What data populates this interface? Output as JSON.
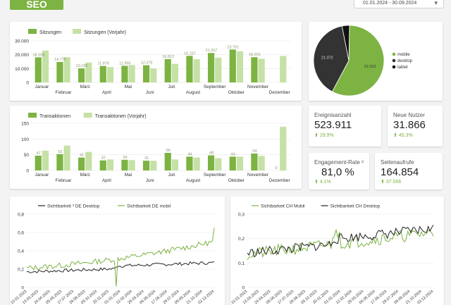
{
  "header": {
    "badge": "SEO",
    "date_range": "01.01.2024 - 30.09.2024",
    "chevron_icon": "chevron-down-icon"
  },
  "colors": {
    "current": "#7cb342",
    "previous": "#c5e1a5",
    "desktop": "#333333",
    "tablet": "#111111",
    "accent": "#7cb342"
  },
  "sessions_chart": {
    "chart_data": {
      "type": "bar",
      "categories": [
        "Januar",
        "Februar",
        "März",
        "April",
        "Mai",
        "Juni",
        "Juli",
        "August",
        "September",
        "Oktober",
        "November",
        "Dezember"
      ],
      "series": [
        {
          "name": "Sitzungen",
          "values": [
            18104,
            14776,
            10155,
            11878,
            11995,
            12376,
            16812,
            19157,
            21257,
            23761,
            18201,
            0
          ]
        },
        {
          "name": "Sitzungen (Vorjahr)",
          "values": [
            23010,
            18244,
            14312,
            11096,
            12554,
            10040,
            13420,
            16712,
            17882,
            22451,
            17050,
            19107
          ]
        }
      ],
      "data_labels": [
        "18.104",
        "14.776",
        "10.155",
        "11.878",
        "11.995",
        "12.376",
        "16.812",
        "19.157",
        "21.257",
        "23.761",
        "18.201",
        ""
      ],
      "yticks": [
        "0",
        "10.000",
        "20.000",
        "30.000"
      ],
      "ylim": [
        0,
        30000
      ]
    }
  },
  "transactions_chart": {
    "chart_data": {
      "type": "bar",
      "categories": [
        "Januar",
        "Februar",
        "März",
        "April",
        "Mai",
        "Juni",
        "Juli",
        "August",
        "September",
        "Oktober",
        "November",
        "Dezember"
      ],
      "series": [
        {
          "name": "Transaktionen",
          "values": [
            47,
            52,
            41,
            32,
            34,
            31,
            56,
            44,
            48,
            44,
            54,
            0
          ]
        },
        {
          "name": "Transaktionen (Vorjahr)",
          "values": [
            63,
            79,
            59,
            35,
            33,
            31,
            35,
            41,
            39,
            44,
            46,
            139
          ]
        }
      ],
      "data_labels": [
        "47",
        "52",
        "41",
        "32",
        "34",
        "31",
        "56",
        "44",
        "48",
        "44",
        "54",
        "0"
      ],
      "yticks": [
        "0",
        "50",
        "100",
        "150"
      ],
      "ylim": [
        0,
        150
      ]
    }
  },
  "device_pie": {
    "chart_data": {
      "type": "pie",
      "slices": [
        {
          "name": "mobile",
          "value": 31010,
          "label": "31.010"
        },
        {
          "name": "desktop",
          "value": 21072,
          "label": "21.072"
        },
        {
          "name": "tablet",
          "value": 1850,
          "label": ""
        }
      ]
    }
  },
  "kpis": [
    {
      "label": "Ereignisanzahl",
      "value": "523.911",
      "delta": "29.9%"
    },
    {
      "label": "Neue Nutzer",
      "value": "31.866",
      "delta": "45.3%"
    },
    {
      "label": "Engagement-Rate ²",
      "value": "81,0 %",
      "delta": "4.1%"
    },
    {
      "label": "Seitenaufrufe",
      "value": "164.854",
      "delta": "37.566"
    }
  ],
  "visibility_de": {
    "chart_data": {
      "type": "line",
      "series": [
        {
          "name": "Sichtbarkeit ³ DE Desktop",
          "color": "#222222"
        },
        {
          "name": "Sichtbarkeit DE mobil",
          "color": "#7cb342"
        }
      ],
      "yticks": [
        "0",
        "0,2",
        "0,4",
        "0,6",
        "0,8"
      ],
      "ylim": [
        0,
        0.8
      ],
      "xticks": [
        "10.01.2023",
        "13.03.2023",
        "24.04.2023",
        "05.06.2023",
        "17.07.2023",
        "28.08.2023",
        "09.10.2023",
        "20.11.2023",
        "01.01.2024",
        "12.02.2024",
        "25.03.2024",
        "06.05.2024",
        "17.06.2024",
        "29.07.2024",
        "09.09.2024",
        "21.10.2024",
        "02.12.2024"
      ]
    }
  },
  "visibility_ch": {
    "chart_data": {
      "type": "line",
      "series": [
        {
          "name": "Sichtbarkeit CH Mobil",
          "color": "#7cb342"
        },
        {
          "name": "Sichtbarkeit CH Desktop",
          "color": "#222222"
        }
      ],
      "yticks": [
        "0",
        "0,1",
        "0,2",
        "0,3"
      ],
      "ylim": [
        0,
        0.3
      ],
      "xticks": [
        "10.01.2023",
        "13.03.2023",
        "24.04.2023",
        "05.06.2023",
        "17.07.2023",
        "28.08.2023",
        "09.10.2023",
        "20.11.2023",
        "01.01.2024",
        "12.02.2024",
        "25.03.2024",
        "06.05.2024",
        "17.06.2024",
        "29.07.2024",
        "09.09.2024",
        "21.10.2024",
        "02.12.2024"
      ]
    }
  }
}
